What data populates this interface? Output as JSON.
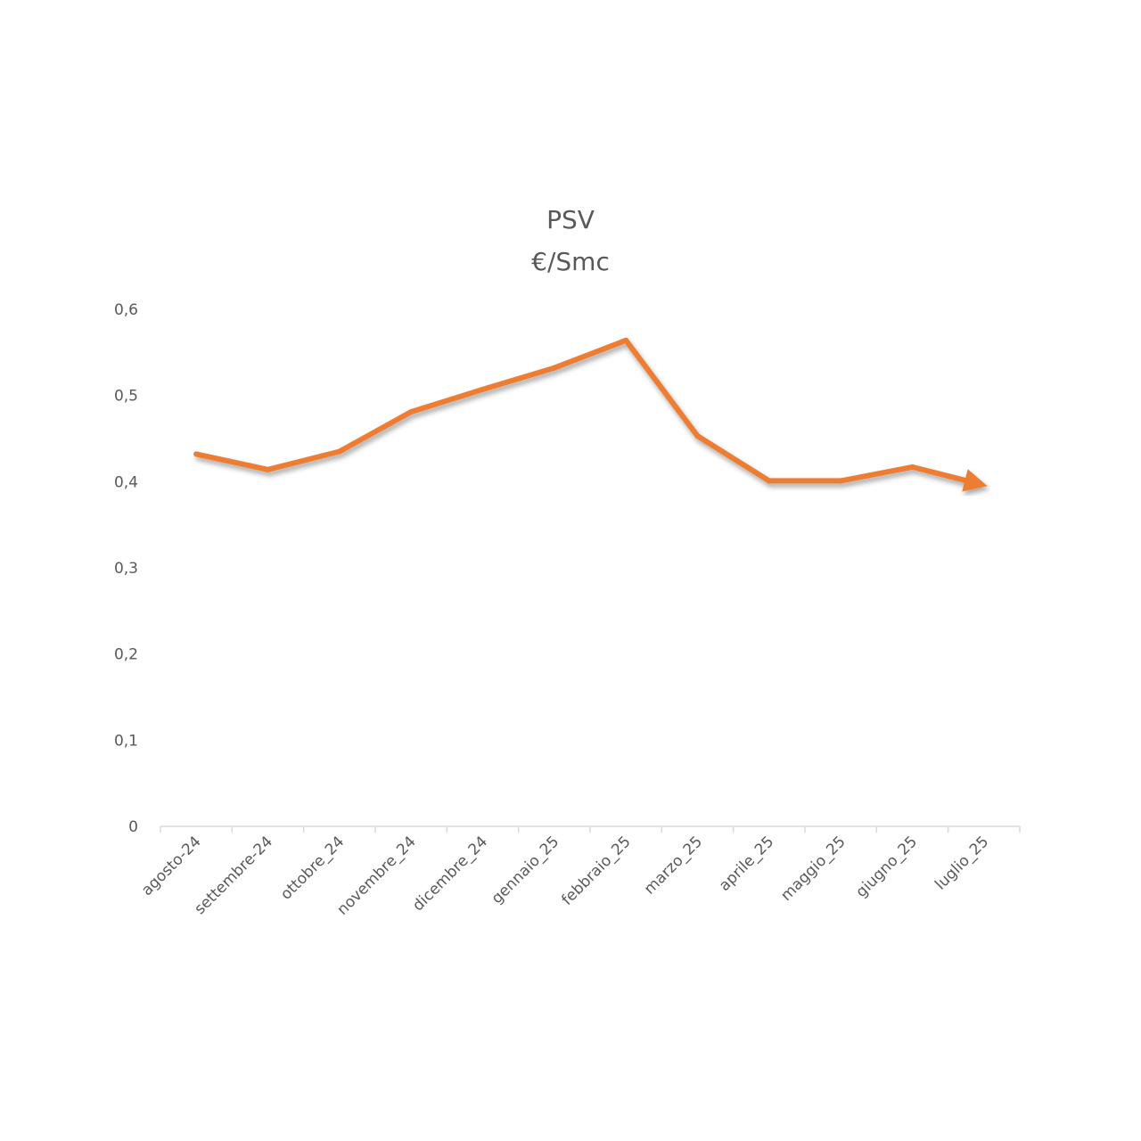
{
  "chart_data": {
    "type": "line",
    "title": [
      "PSV",
      "€/Smc"
    ],
    "categories": [
      "agosto-24",
      "settembre-24",
      "ottobre_24",
      "novembre_24",
      "dicembre_24",
      "gennaio_25",
      "febbraio_25",
      "marzo_25",
      "aprile_25",
      "maggio_25",
      "giugno_25",
      "luglio_25"
    ],
    "series": [
      {
        "values": [
          0.432,
          0.414,
          0.435,
          0.481,
          0.507,
          0.532,
          0.564,
          0.453,
          0.401,
          0.401,
          0.417,
          0.396
        ]
      }
    ],
    "y_ticks": [
      "0",
      "0,1",
      "0,2",
      "0,3",
      "0,4",
      "0,5",
      "0,6"
    ],
    "ylim": [
      0,
      0.6
    ],
    "grid": false,
    "legend": "none",
    "line_style": "arrow-end",
    "colors": {
      "series": "#ED7D31",
      "text": "#595959",
      "axis": "#D9D9D9"
    }
  }
}
